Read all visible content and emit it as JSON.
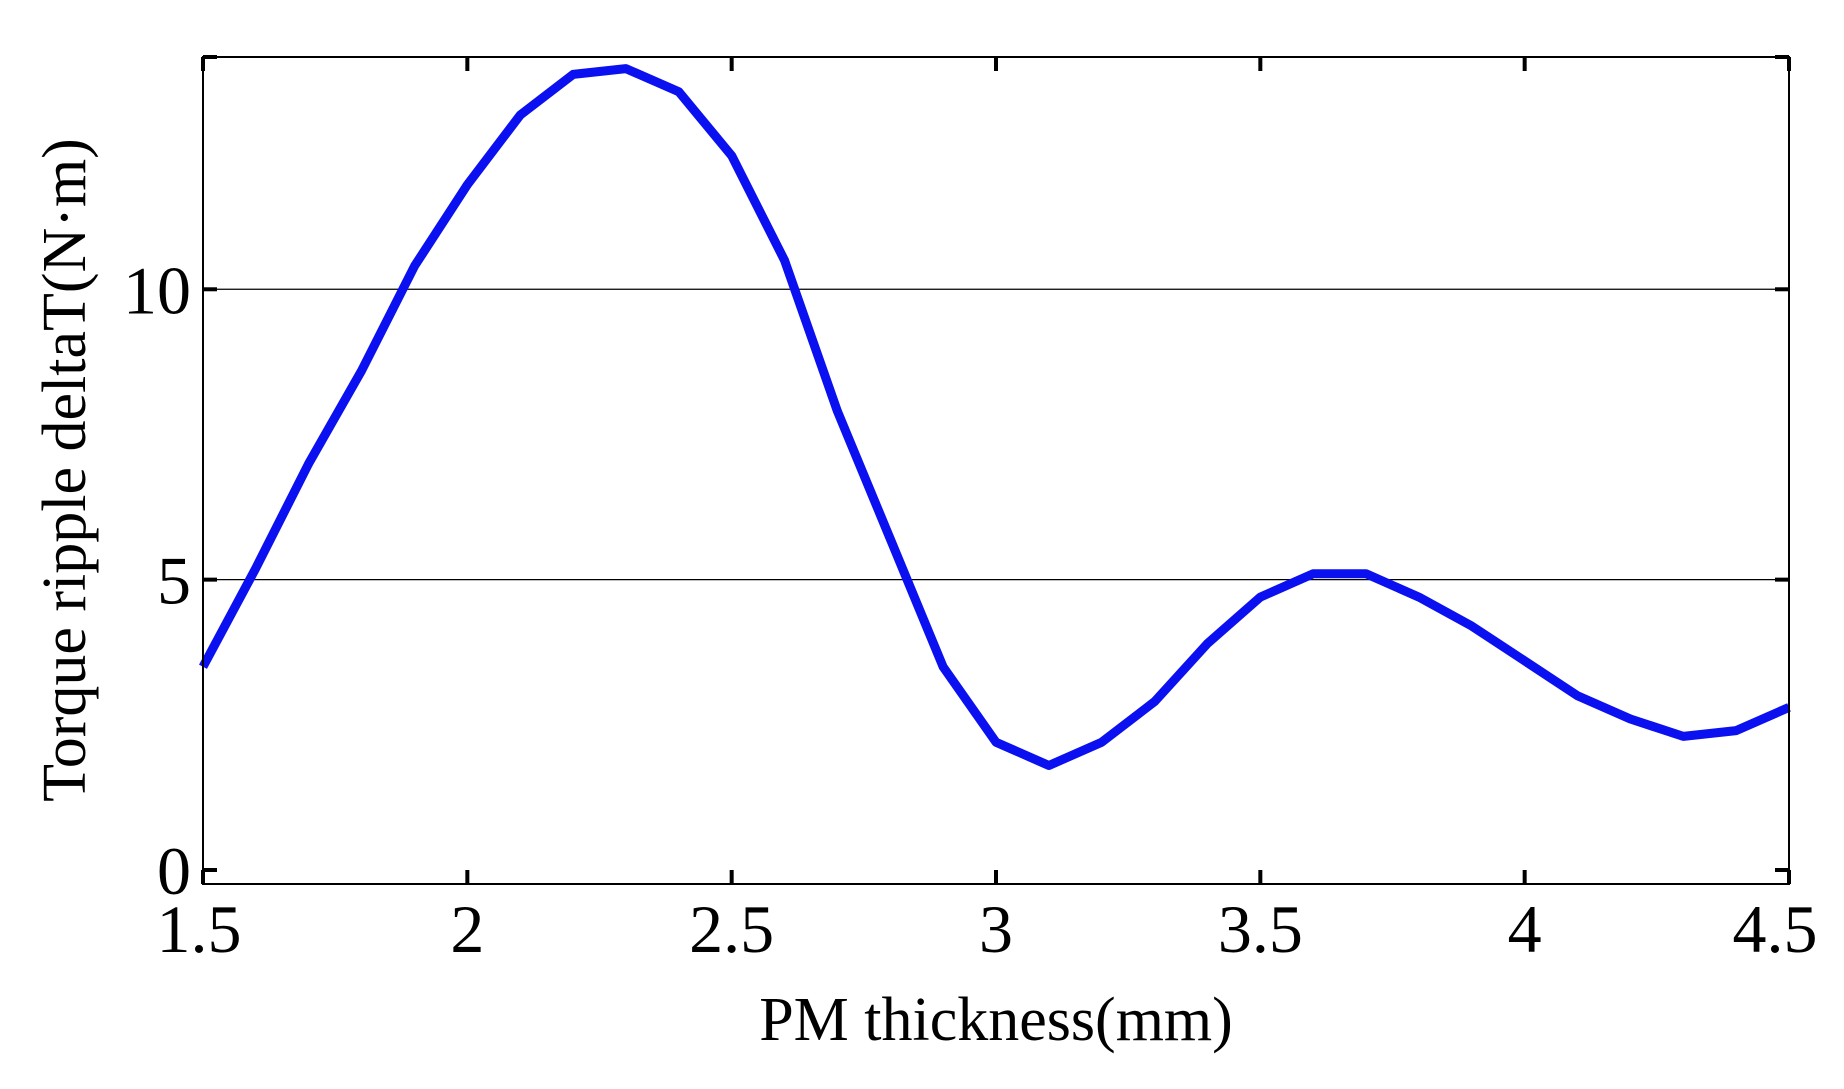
{
  "chart_data": {
    "type": "line",
    "title": "",
    "xlabel": "PM thickness(mm)",
    "ylabel": "Torque ripple deltaT(N·m)",
    "xlim": [
      1.5,
      4.5
    ],
    "ylim": [
      0,
      14
    ],
    "x_ticks": [
      "1.5",
      "2",
      "2.5",
      "3",
      "3.5",
      "4",
      "4.5"
    ],
    "y_ticks": [
      "0",
      "5",
      "10"
    ],
    "grid": "horizontal at y ticks",
    "series": [
      {
        "color": "#0a10f0",
        "x": [
          1.5,
          1.6,
          1.7,
          1.8,
          1.9,
          2.0,
          2.1,
          2.2,
          2.3,
          2.4,
          2.5,
          2.6,
          2.7,
          2.8,
          2.9,
          3.0,
          3.1,
          3.2,
          3.3,
          3.4,
          3.5,
          3.6,
          3.7,
          3.8,
          3.9,
          4.0,
          4.1,
          4.2,
          4.3,
          4.4,
          4.5
        ],
        "y": [
          3.5,
          5.2,
          7.0,
          8.6,
          10.4,
          11.8,
          13.0,
          13.7,
          13.8,
          13.4,
          12.3,
          10.5,
          7.9,
          5.7,
          3.5,
          2.2,
          1.8,
          2.2,
          2.9,
          3.9,
          4.7,
          5.1,
          5.1,
          4.7,
          4.2,
          3.6,
          3.0,
          2.6,
          2.3,
          2.4,
          2.8
        ]
      }
    ]
  }
}
